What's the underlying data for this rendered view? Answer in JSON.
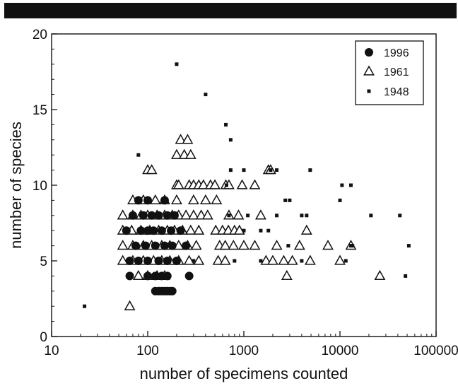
{
  "chart_data": {
    "type": "scatter",
    "title": "",
    "xlabel": "number of specimens counted",
    "ylabel": "number of species",
    "xscale": "log",
    "xlim": [
      10,
      100000
    ],
    "ylim": [
      0,
      20
    ],
    "xticks": [
      10,
      100,
      1000,
      10000,
      100000
    ],
    "xtick_labels": [
      "10",
      "100",
      "1000",
      "10000",
      "100000"
    ],
    "yticks": [
      0,
      5,
      10,
      15,
      20
    ],
    "ytick_labels": [
      "0",
      "5",
      "10",
      "15",
      "20"
    ],
    "grid": false,
    "legend_position": "top-right",
    "series": [
      {
        "name": "1996",
        "marker": "circle",
        "color": "#111111",
        "points": [
          [
            80,
            9
          ],
          [
            100,
            9
          ],
          [
            150,
            9
          ],
          [
            70,
            8
          ],
          [
            90,
            8
          ],
          [
            110,
            8
          ],
          [
            130,
            8
          ],
          [
            160,
            8
          ],
          [
            190,
            8
          ],
          [
            60,
            7
          ],
          [
            85,
            7
          ],
          [
            100,
            7
          ],
          [
            115,
            7
          ],
          [
            140,
            7
          ],
          [
            175,
            7
          ],
          [
            220,
            7
          ],
          [
            75,
            6
          ],
          [
            95,
            6
          ],
          [
            120,
            6
          ],
          [
            150,
            6
          ],
          [
            180,
            6
          ],
          [
            250,
            6
          ],
          [
            65,
            5
          ],
          [
            80,
            5
          ],
          [
            100,
            5
          ],
          [
            130,
            5
          ],
          [
            160,
            5
          ],
          [
            200,
            5
          ],
          [
            65,
            4
          ],
          [
            100,
            4
          ],
          [
            120,
            4
          ],
          [
            140,
            4
          ],
          [
            160,
            4
          ],
          [
            270,
            4
          ],
          [
            120,
            3
          ],
          [
            130,
            3
          ],
          [
            140,
            3
          ],
          [
            150,
            3
          ],
          [
            160,
            3
          ],
          [
            170,
            3
          ],
          [
            180,
            3
          ]
        ]
      },
      {
        "name": "1961",
        "marker": "triangle",
        "color": "#111111",
        "points": [
          [
            220,
            13
          ],
          [
            260,
            13
          ],
          [
            200,
            12
          ],
          [
            240,
            12
          ],
          [
            280,
            12
          ],
          [
            100,
            11
          ],
          [
            110,
            11
          ],
          [
            1800,
            11
          ],
          [
            1900,
            11
          ],
          [
            200,
            10
          ],
          [
            210,
            10
          ],
          [
            270,
            10
          ],
          [
            300,
            10
          ],
          [
            340,
            10
          ],
          [
            380,
            10
          ],
          [
            450,
            10
          ],
          [
            500,
            10
          ],
          [
            650,
            10
          ],
          [
            700,
            10
          ],
          [
            960,
            10
          ],
          [
            1300,
            10
          ],
          [
            70,
            9
          ],
          [
            90,
            9
          ],
          [
            120,
            9
          ],
          [
            150,
            9
          ],
          [
            200,
            9
          ],
          [
            300,
            9
          ],
          [
            400,
            9
          ],
          [
            520,
            9
          ],
          [
            55,
            8
          ],
          [
            70,
            8
          ],
          [
            85,
            8
          ],
          [
            100,
            8
          ],
          [
            125,
            8
          ],
          [
            150,
            8
          ],
          [
            180,
            8
          ],
          [
            210,
            8
          ],
          [
            250,
            8
          ],
          [
            300,
            8
          ],
          [
            360,
            8
          ],
          [
            420,
            8
          ],
          [
            700,
            8
          ],
          [
            880,
            8
          ],
          [
            1500,
            8
          ],
          [
            55,
            7
          ],
          [
            68,
            7
          ],
          [
            85,
            7
          ],
          [
            105,
            7
          ],
          [
            130,
            7
          ],
          [
            160,
            7
          ],
          [
            190,
            7
          ],
          [
            230,
            7
          ],
          [
            280,
            7
          ],
          [
            340,
            7
          ],
          [
            510,
            7
          ],
          [
            600,
            7
          ],
          [
            690,
            7
          ],
          [
            800,
            7
          ],
          [
            900,
            7
          ],
          [
            4500,
            7
          ],
          [
            55,
            6
          ],
          [
            70,
            6
          ],
          [
            90,
            6
          ],
          [
            110,
            6
          ],
          [
            140,
            6
          ],
          [
            170,
            6
          ],
          [
            210,
            6
          ],
          [
            260,
            6
          ],
          [
            320,
            6
          ],
          [
            560,
            6
          ],
          [
            640,
            6
          ],
          [
            780,
            6
          ],
          [
            1000,
            6
          ],
          [
            1300,
            6
          ],
          [
            2200,
            6
          ],
          [
            3800,
            6
          ],
          [
            7500,
            6
          ],
          [
            13000,
            6
          ],
          [
            55,
            5
          ],
          [
            70,
            5
          ],
          [
            90,
            5
          ],
          [
            115,
            5
          ],
          [
            140,
            5
          ],
          [
            170,
            5
          ],
          [
            210,
            5
          ],
          [
            270,
            5
          ],
          [
            340,
            5
          ],
          [
            540,
            5
          ],
          [
            640,
            5
          ],
          [
            1700,
            5
          ],
          [
            2000,
            5
          ],
          [
            2600,
            5
          ],
          [
            3200,
            5
          ],
          [
            4900,
            5
          ],
          [
            10000,
            5
          ],
          [
            80,
            4
          ],
          [
            100,
            4
          ],
          [
            125,
            4
          ],
          [
            150,
            4
          ],
          [
            2800,
            4
          ],
          [
            26000,
            4
          ],
          [
            65,
            2
          ]
        ]
      },
      {
        "name": "1948",
        "marker": "square",
        "color": "#111111",
        "points": [
          [
            200,
            18
          ],
          [
            400,
            16
          ],
          [
            650,
            14
          ],
          [
            730,
            13
          ],
          [
            80,
            12
          ],
          [
            730,
            11
          ],
          [
            1000,
            11
          ],
          [
            1900,
            11
          ],
          [
            2200,
            11
          ],
          [
            4900,
            11
          ],
          [
            660,
            10
          ],
          [
            10500,
            10
          ],
          [
            13000,
            10
          ],
          [
            2700,
            9
          ],
          [
            3000,
            9
          ],
          [
            10000,
            9
          ],
          [
            700,
            8
          ],
          [
            1100,
            8
          ],
          [
            2200,
            8
          ],
          [
            4000,
            8
          ],
          [
            4500,
            8
          ],
          [
            21000,
            8
          ],
          [
            42000,
            8
          ],
          [
            1000,
            7
          ],
          [
            1500,
            7
          ],
          [
            1800,
            7
          ],
          [
            2900,
            6
          ],
          [
            13000,
            6
          ],
          [
            13500,
            6
          ],
          [
            52000,
            6
          ],
          [
            300,
            5
          ],
          [
            800,
            5
          ],
          [
            1500,
            5
          ],
          [
            4000,
            5
          ],
          [
            11500,
            5
          ],
          [
            48000,
            4
          ],
          [
            22,
            2
          ]
        ]
      }
    ]
  }
}
